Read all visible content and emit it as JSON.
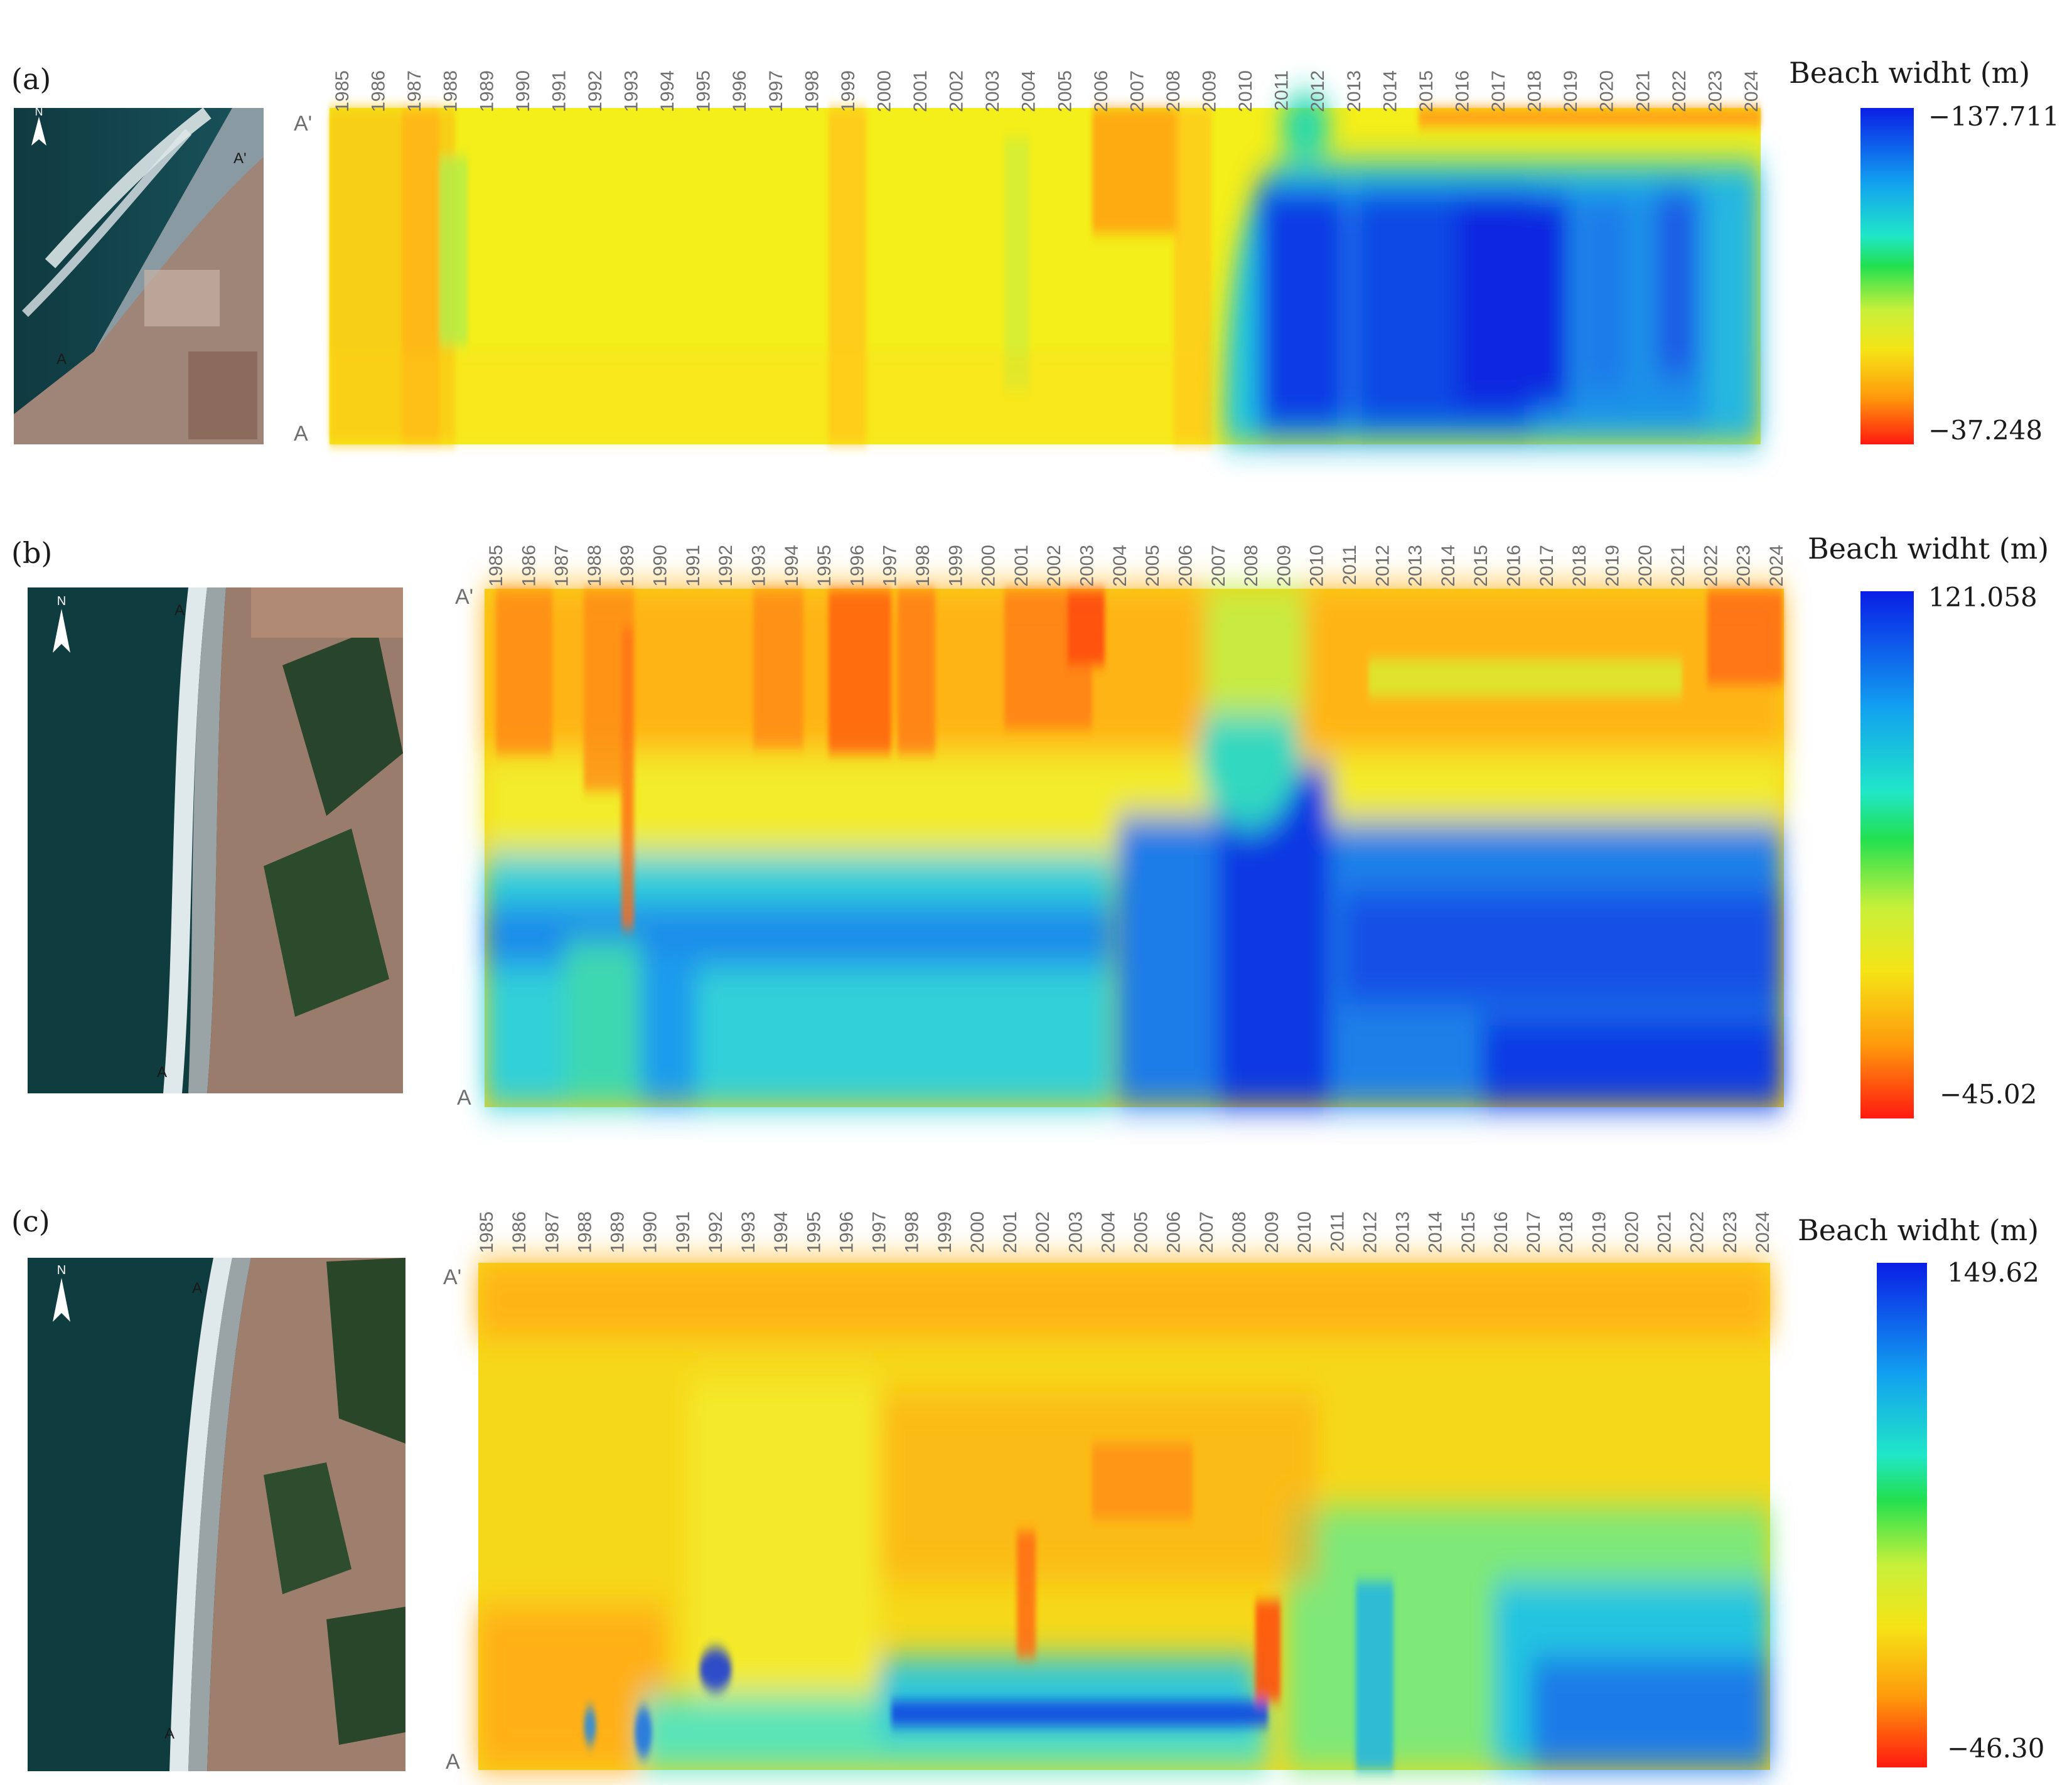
{
  "chart_data": [
    {
      "type": "heatmap",
      "panel_label": "(a)",
      "years": [
        "1985",
        "1986",
        "1987",
        "1988",
        "1989",
        "1990",
        "1991",
        "1992",
        "1993",
        "1994",
        "1995",
        "1996",
        "1997",
        "1998",
        "1999",
        "2000",
        "2001",
        "2002",
        "2003",
        "2004",
        "2005",
        "2006",
        "2007",
        "2008",
        "2009",
        "2010",
        "2011",
        "2012",
        "2013",
        "2014",
        "2015",
        "2016",
        "2017",
        "2018",
        "2019",
        "2020",
        "2021",
        "2022",
        "2023",
        "2024"
      ],
      "y_top_label": "A'",
      "y_bottom_label": "A",
      "colorbar": {
        "title": "Beach widht (m)",
        "max_label": "−137.711",
        "min_label": "−37.248"
      },
      "map": {
        "north_label": "N",
        "top_marker": "A'",
        "bottom_marker": "A"
      }
    },
    {
      "type": "heatmap",
      "panel_label": "(b)",
      "years": [
        "1985",
        "1986",
        "1987",
        "1988",
        "1989",
        "1990",
        "1991",
        "1992",
        "1993",
        "1994",
        "1995",
        "1996",
        "1997",
        "1998",
        "1999",
        "2000",
        "2001",
        "2002",
        "2003",
        "2004",
        "2005",
        "2006",
        "2007",
        "2008",
        "2009",
        "2010",
        "2011",
        "2012",
        "2013",
        "2014",
        "2015",
        "2016",
        "2017",
        "2018",
        "2019",
        "2020",
        "2021",
        "2022",
        "2023",
        "2024"
      ],
      "y_top_label": "A'",
      "y_bottom_label": "A",
      "colorbar": {
        "title": "Beach widht (m)",
        "max_label": "121.058",
        "min_label": "−45.02"
      },
      "map": {
        "north_label": "N",
        "top_marker": "A",
        "bottom_marker": "A"
      }
    },
    {
      "type": "heatmap",
      "panel_label": "(c)",
      "years": [
        "1985",
        "1986",
        "1987",
        "1988",
        "1989",
        "1990",
        "1991",
        "1992",
        "1993",
        "1994",
        "1995",
        "1996",
        "1997",
        "1998",
        "1999",
        "2000",
        "2001",
        "2002",
        "2003",
        "2004",
        "2005",
        "2006",
        "2007",
        "2008",
        "2009",
        "2010",
        "2011",
        "2012",
        "2013",
        "2014",
        "2015",
        "2016",
        "2017",
        "2018",
        "2019",
        "2020",
        "2021",
        "2022",
        "2023",
        "2024"
      ],
      "y_top_label": "A'",
      "y_bottom_label": "A",
      "colorbar": {
        "title": "Beach widht (m)",
        "max_label": "149.62",
        "min_label": "−46.30"
      },
      "map": {
        "north_label": "N",
        "top_marker": "A",
        "bottom_marker": "A"
      }
    }
  ]
}
